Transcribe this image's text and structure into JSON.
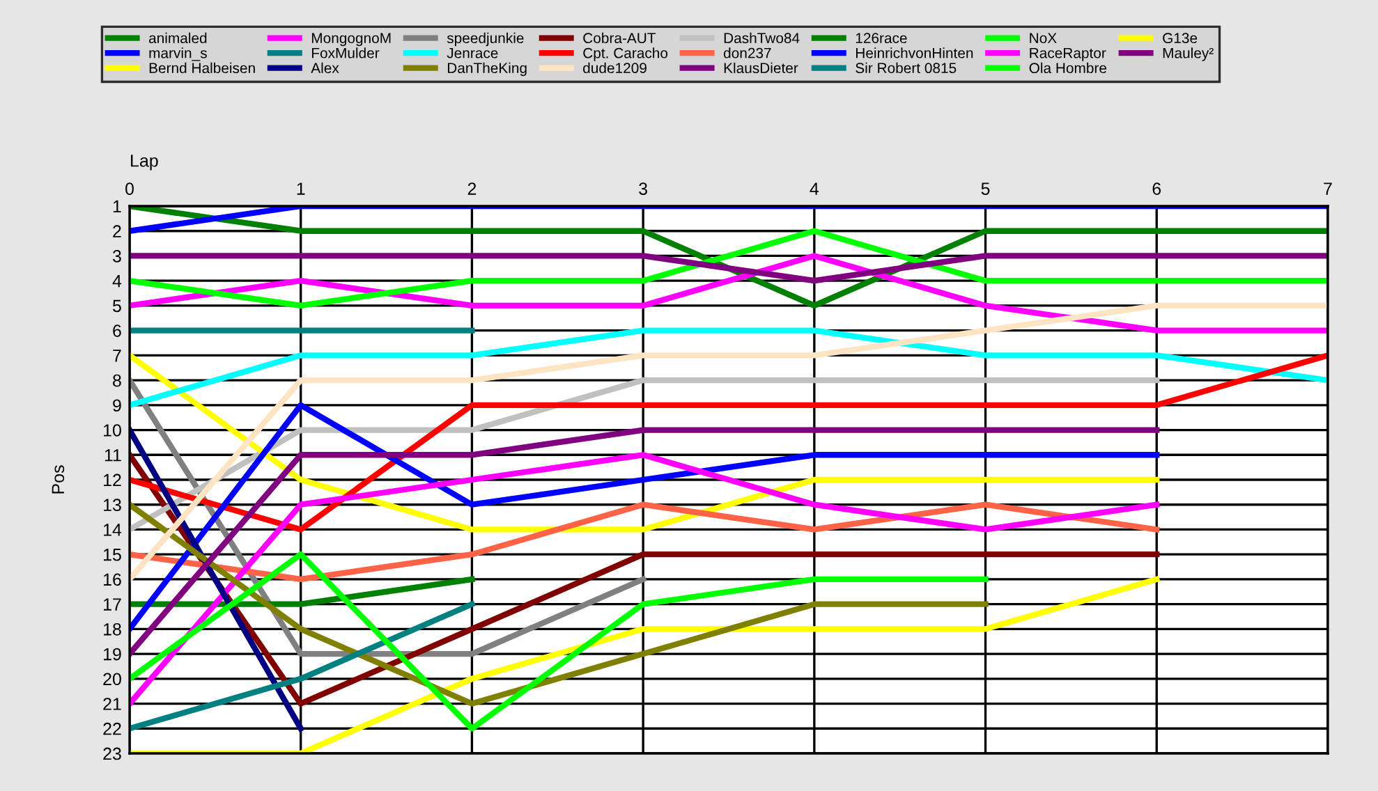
{
  "chart_data": {
    "type": "line",
    "xlabel": "Lap",
    "ylabel": "Pos",
    "x": [
      0,
      1,
      2,
      3,
      4,
      5,
      6,
      7
    ],
    "xlim": [
      0,
      7
    ],
    "xticks": [
      0,
      1,
      2,
      3,
      4,
      5,
      6,
      7
    ],
    "ylim": [
      23,
      1
    ],
    "yticks": [
      1,
      2,
      3,
      4,
      5,
      6,
      7,
      8,
      9,
      10,
      11,
      12,
      13,
      14,
      15,
      16,
      17,
      18,
      19,
      20,
      21,
      22,
      23
    ],
    "grid": true,
    "legend": "top",
    "marker": "none",
    "line_style": "solid",
    "series": [
      {
        "name": "animaled",
        "color": "#008000",
        "values": [
          1,
          2,
          2,
          2,
          5,
          2,
          2,
          2
        ]
      },
      {
        "name": "MongognoM",
        "color": "#ff00ff",
        "values": [
          5,
          4,
          5,
          5,
          3,
          5,
          6,
          6
        ]
      },
      {
        "name": "speedjunkie",
        "color": "#808080",
        "values": [
          8,
          19,
          19,
          16,
          null,
          null,
          null,
          null
        ]
      },
      {
        "name": "Cobra-AUT",
        "color": "#800000",
        "values": [
          11,
          21,
          18,
          15,
          15,
          15,
          15,
          null
        ]
      },
      {
        "name": "DashTwo84",
        "color": "#c0c0c0",
        "values": [
          14,
          10,
          10,
          8,
          8,
          8,
          8,
          null
        ]
      },
      {
        "name": "126race",
        "color": "#008000",
        "values": [
          17,
          17,
          16,
          null,
          null,
          null,
          null,
          null
        ]
      },
      {
        "name": "NoX",
        "color": "#00ff00",
        "values": [
          4,
          5,
          4,
          4,
          2,
          4,
          4,
          4
        ]
      },
      {
        "name": "G13e",
        "color": "#ffff00",
        "values": [
          7,
          12,
          14,
          14,
          12,
          12,
          12,
          null
        ]
      },
      {
        "name": "marvin_s",
        "color": "#0000ff",
        "values": [
          2,
          1,
          1,
          1,
          1,
          1,
          1,
          1
        ]
      },
      {
        "name": "FoxMulder",
        "color": "#008080",
        "values": [
          6,
          6,
          6,
          null,
          null,
          null,
          null,
          null
        ]
      },
      {
        "name": "Jenrace",
        "color": "#00ffff",
        "values": [
          9,
          7,
          7,
          6,
          6,
          7,
          7,
          8
        ]
      },
      {
        "name": "Cpt. Caracho",
        "color": "#ff0000",
        "values": [
          12,
          14,
          9,
          9,
          9,
          9,
          9,
          7
        ]
      },
      {
        "name": "don237",
        "color": "#ff6347",
        "values": [
          15,
          16,
          15,
          13,
          14,
          13,
          14,
          null
        ]
      },
      {
        "name": "HeinrichvonHinten",
        "color": "#0000ff",
        "values": [
          18,
          9,
          13,
          12,
          11,
          11,
          11,
          null
        ]
      },
      {
        "name": "RaceRaptor",
        "color": "#ff00ff",
        "values": [
          21,
          13,
          12,
          11,
          13,
          14,
          13,
          null
        ]
      },
      {
        "name": "Mauley²",
        "color": "#800080",
        "values": [
          3,
          3,
          3,
          3,
          4,
          3,
          3,
          3
        ]
      },
      {
        "name": "Bernd Halbeisen",
        "color": "#ffff00",
        "values": [
          23,
          23,
          20,
          18,
          18,
          18,
          16,
          null
        ]
      },
      {
        "name": "Alex",
        "color": "#000080",
        "values": [
          10,
          22,
          null,
          null,
          null,
          null,
          null,
          null
        ]
      },
      {
        "name": "DanTheKing",
        "color": "#808000",
        "values": [
          13,
          18,
          21,
          19,
          17,
          17,
          null,
          null
        ]
      },
      {
        "name": "dude1209",
        "color": "#ffe4c4",
        "values": [
          16,
          8,
          8,
          7,
          7,
          6,
          5,
          5
        ]
      },
      {
        "name": "KlausDieter",
        "color": "#800080",
        "values": [
          19,
          11,
          11,
          10,
          10,
          10,
          10,
          null
        ]
      },
      {
        "name": "Sir Robert 0815",
        "color": "#008080",
        "values": [
          22,
          20,
          17,
          null,
          null,
          null,
          null,
          null
        ]
      },
      {
        "name": "Ola Hombre",
        "color": "#00ff00",
        "values": [
          20,
          15,
          22,
          17,
          16,
          16,
          null,
          null
        ]
      }
    ]
  }
}
